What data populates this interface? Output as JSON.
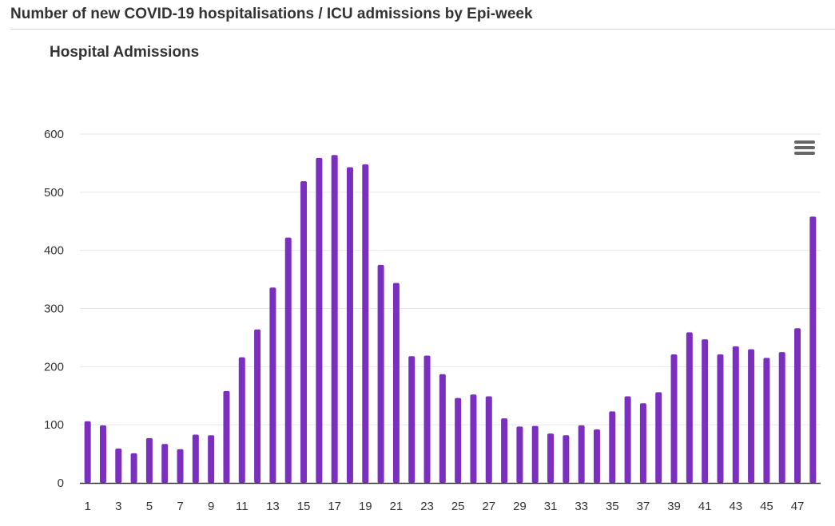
{
  "header": {
    "title": "Number of new COVID-19 hospitalisations / ICU admissions by Epi-week"
  },
  "chart_menu_icon": "hamburger-menu-icon",
  "chart_data": {
    "type": "bar",
    "title": "Hospital Admissions",
    "xlabel": "",
    "ylabel": "",
    "ylim": [
      0,
      600
    ],
    "y_ticks": [
      0,
      100,
      200,
      300,
      400,
      500,
      600
    ],
    "categories": [
      1,
      2,
      3,
      4,
      5,
      6,
      7,
      8,
      9,
      10,
      11,
      12,
      13,
      14,
      15,
      16,
      17,
      18,
      19,
      20,
      21,
      22,
      23,
      24,
      25,
      26,
      27,
      28,
      29,
      30,
      31,
      32,
      33,
      34,
      35,
      36,
      37,
      38,
      39,
      40,
      41,
      42,
      43,
      44,
      45,
      46,
      47,
      48
    ],
    "x_tick_labels": [
      "1",
      "3",
      "5",
      "7",
      "9",
      "11",
      "13",
      "15",
      "17",
      "19",
      "21",
      "23",
      "25",
      "27",
      "29",
      "31",
      "33",
      "35",
      "37",
      "39",
      "41",
      "43",
      "45",
      "47"
    ],
    "values": [
      106,
      99,
      59,
      51,
      77,
      67,
      58,
      83,
      82,
      158,
      216,
      264,
      336,
      422,
      519,
      559,
      564,
      543,
      548,
      375,
      344,
      218,
      219,
      187,
      146,
      152,
      149,
      111,
      97,
      98,
      85,
      82,
      99,
      92,
      123,
      149,
      137,
      156,
      221,
      259,
      247,
      221,
      235,
      230,
      215,
      225,
      266,
      458
    ],
    "colors": {
      "bar": "#7b2fc0",
      "grid": "#e6e6e6",
      "axis": "#333333"
    },
    "grid": true,
    "legend": "none"
  }
}
